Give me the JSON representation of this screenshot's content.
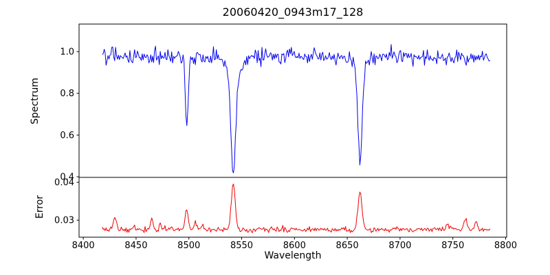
{
  "chart_data": {
    "type": "line",
    "title": "20060420_0943m17_128",
    "xlabel": "Wavelength",
    "xlim": [
      8396,
      8801
    ],
    "x_ticks": {
      "values": [
        8400,
        8450,
        8500,
        8550,
        8600,
        8650,
        8700,
        8750,
        8800
      ],
      "labels": [
        "8400",
        "8450",
        "8500",
        "8550",
        "8600",
        "8650",
        "8700",
        "8750",
        "8800"
      ]
    },
    "grid": false,
    "legend": false,
    "panels": [
      {
        "ylabel": "Spectrum",
        "ylim": [
          0.397,
          1.132
        ],
        "yticks": {
          "values": [
            0.4,
            0.6,
            0.8,
            1.0
          ],
          "labels": [
            "0.4",
            "0.6",
            "0.8",
            "1.0"
          ]
        },
        "color": "#0000ee",
        "series": {
          "name": "spectrum",
          "x_start": 8418,
          "x_end": 8786,
          "x_step": 0.9,
          "continuum": 0.975,
          "noise_sigma": 0.017,
          "absorption_lines": [
            {
              "center": 8498.0,
              "depth": 0.34,
              "width": 1.3
            },
            {
              "center": 8542.1,
              "depth": 0.46,
              "width": 2.2
            },
            {
              "center": 8542.1,
              "depth": 0.1,
              "width": 6.0
            },
            {
              "center": 8662.1,
              "depth": 0.46,
              "width": 2.0
            },
            {
              "center": 8662.1,
              "depth": 0.05,
              "width": 5.0
            }
          ]
        }
      },
      {
        "ylabel": "Error",
        "ylim": [
          0.0255,
          0.0413
        ],
        "yticks": {
          "values": [
            0.03,
            0.04
          ],
          "labels": [
            "0.03",
            "0.04"
          ]
        },
        "color": "#ee0000",
        "series": {
          "name": "error",
          "x_start": 8418,
          "x_end": 8786,
          "x_step": 0.9,
          "baseline": 0.0275,
          "noise_sigma": 0.00035,
          "peaks": [
            {
              "center": 8430.0,
              "height": 0.0035,
              "width": 1.5
            },
            {
              "center": 8448.0,
              "height": 0.0012,
              "width": 1.0
            },
            {
              "center": 8465.0,
              "height": 0.0028,
              "width": 1.3
            },
            {
              "center": 8473.0,
              "height": 0.0015,
              "width": 1.0
            },
            {
              "center": 8498.0,
              "height": 0.005,
              "width": 1.5
            },
            {
              "center": 8506.0,
              "height": 0.0018,
              "width": 1.0
            },
            {
              "center": 8513.0,
              "height": 0.0015,
              "width": 1.0
            },
            {
              "center": 8542.1,
              "height": 0.0122,
              "width": 1.8
            },
            {
              "center": 8662.1,
              "height": 0.0102,
              "width": 1.8
            },
            {
              "center": 8745.0,
              "height": 0.0015,
              "width": 1.2
            },
            {
              "center": 8762.0,
              "height": 0.003,
              "width": 1.4
            },
            {
              "center": 8772.0,
              "height": 0.002,
              "width": 1.2
            }
          ]
        }
      }
    ]
  }
}
